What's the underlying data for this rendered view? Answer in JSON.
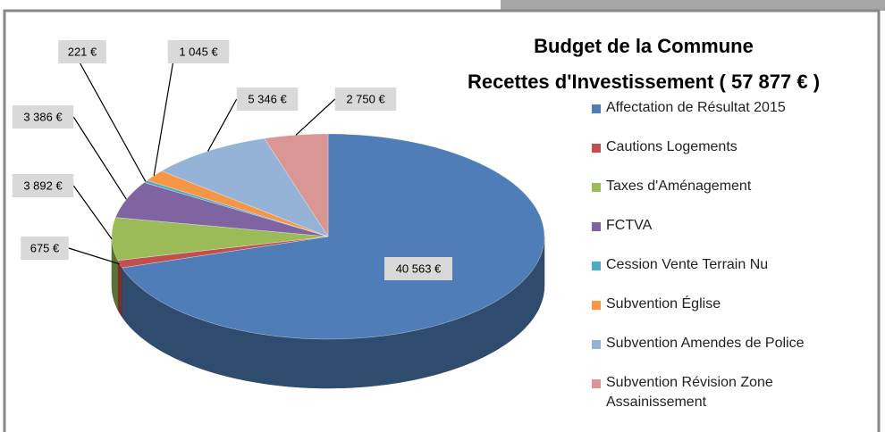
{
  "chart_data": {
    "type": "pie",
    "title": "Budget de la Commune",
    "subtitle": "Recettes d'Investissement ( 57 877 € )",
    "categories": [
      "Affectation de Résultat 2015",
      "Cautions Logements",
      "Taxes d'Aménagement",
      "FCTVA",
      "Cession Vente Terrain Nu",
      "Subvention Église",
      "Subvention Amendes de Police",
      "Subvention Révision Zone Assainissement"
    ],
    "values": [
      40563,
      675,
      3892,
      3386,
      221,
      1045,
      5346,
      2750
    ],
    "value_labels": [
      "40 563 €",
      "675 €",
      "3 892 €",
      "3 386 €",
      "221 €",
      "1 045 €",
      "5 346 €",
      "2 750 €"
    ],
    "colors": [
      "#4f7db8",
      "#c0504d",
      "#9bbb59",
      "#8064a2",
      "#4bacc6",
      "#f79646",
      "#95b3d7",
      "#d99694"
    ],
    "legend": "right"
  }
}
